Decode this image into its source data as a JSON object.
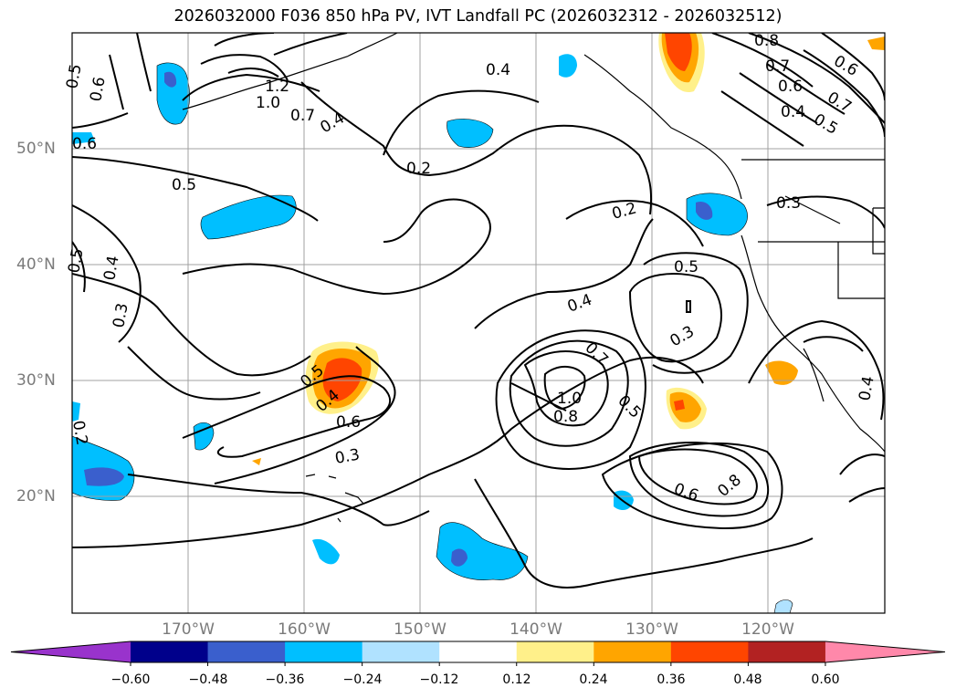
{
  "title": "2026032000 F036 850 hPa PV, IVT Landfall PC (2026032312 - 2026032512)",
  "lon_labels": [
    "170°W",
    "160°W",
    "150°W",
    "140°W",
    "130°W",
    "120°W"
  ],
  "lat_labels": [
    "50°N",
    "40°N",
    "30°N",
    "20°N"
  ],
  "colorbar": {
    "ticks": [
      "−0.60",
      "−0.48",
      "−0.36",
      "−0.24",
      "−0.12",
      "0.12",
      "0.24",
      "0.36",
      "0.48",
      "0.60"
    ],
    "colors": [
      "#9933cc",
      "#00008b",
      "#3a5fcd",
      "#00bfff",
      "#b0e2ff",
      "#ffffff",
      "#fff08a",
      "#ffa500",
      "#ff4500",
      "#b22222",
      "#ff88aa"
    ]
  },
  "contour_labels": [
    "0.5",
    "0.6",
    "1.0",
    "1.2",
    "0.7",
    "0.4",
    "0.8",
    "0.7",
    "0.6",
    "0.4",
    "0.5",
    "0.7",
    "0.6",
    "0.6",
    "0.4",
    "0.2",
    "0.5",
    "0.3",
    "0.2",
    "0.5",
    "0.4",
    "0.3",
    "0.5",
    "0.4",
    "0.7",
    "0.3",
    "1.0",
    "0.8",
    "0.5",
    "0.6",
    "0.8",
    "0.5",
    "0.6",
    "0.3",
    "0.4",
    "0.2",
    "0.4"
  ]
}
